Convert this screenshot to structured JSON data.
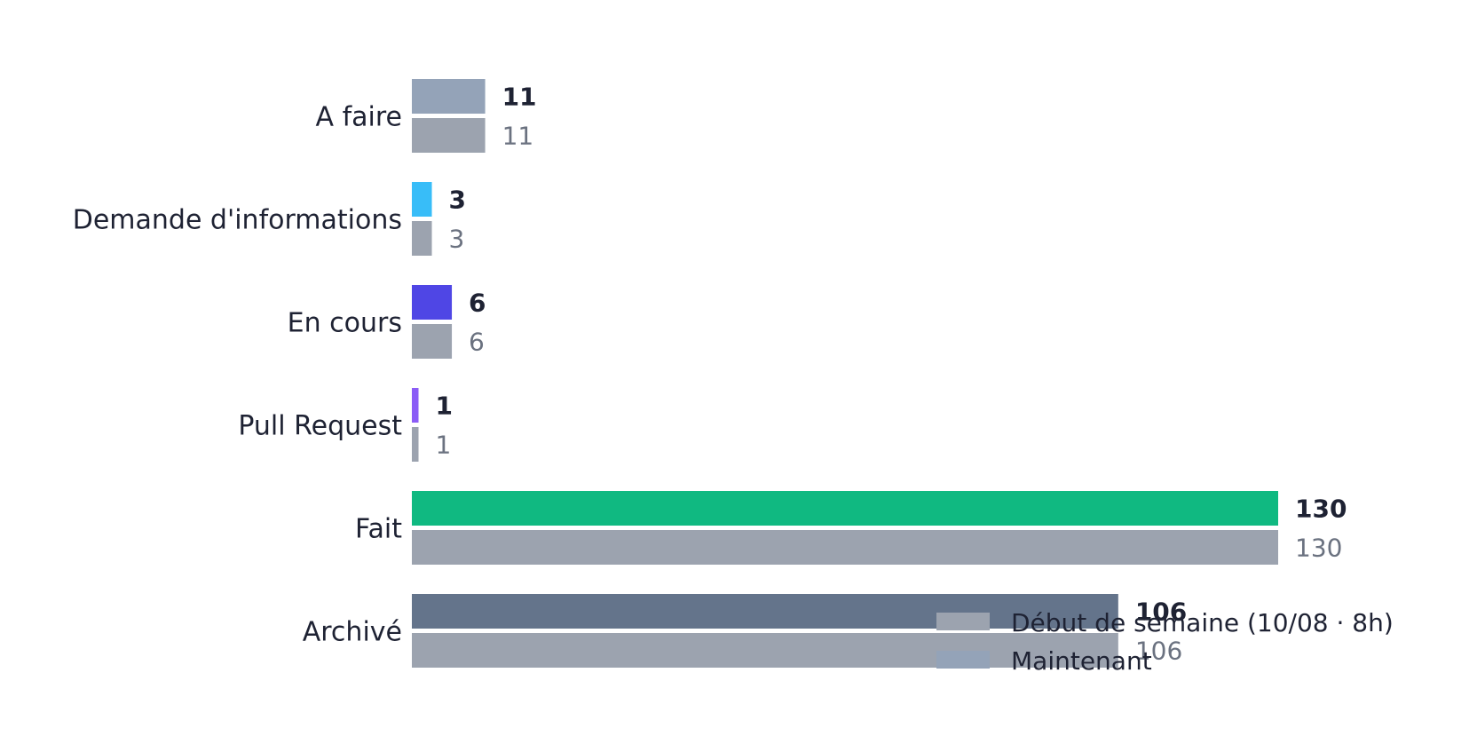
{
  "chart_data": {
    "type": "bar",
    "orientation": "horizontal",
    "categories": [
      "A faire",
      "Demande d'informations",
      "En cours",
      "Pull Request",
      "Fait",
      "Archivé"
    ],
    "series": [
      {
        "name": "Maintenant",
        "values": [
          11,
          3,
          6,
          1,
          130,
          106
        ],
        "colors": [
          "#94a3b8",
          "#38bdf8",
          "#4f46e5",
          "#8b5cf6",
          "#10b981",
          "#64748b"
        ]
      },
      {
        "name": "Début de semaine (10/08 · 8h)",
        "values": [
          11,
          3,
          6,
          1,
          130,
          106
        ],
        "color": "#9ca3af"
      }
    ],
    "xlim": [
      0,
      130
    ],
    "grid": false,
    "legend_position": "bottom-right",
    "legend": [
      {
        "label": "Début de semaine (10/08 · 8h)",
        "color": "#9ca3af"
      },
      {
        "label": "Maintenant",
        "color": "#94a3b8"
      }
    ]
  }
}
